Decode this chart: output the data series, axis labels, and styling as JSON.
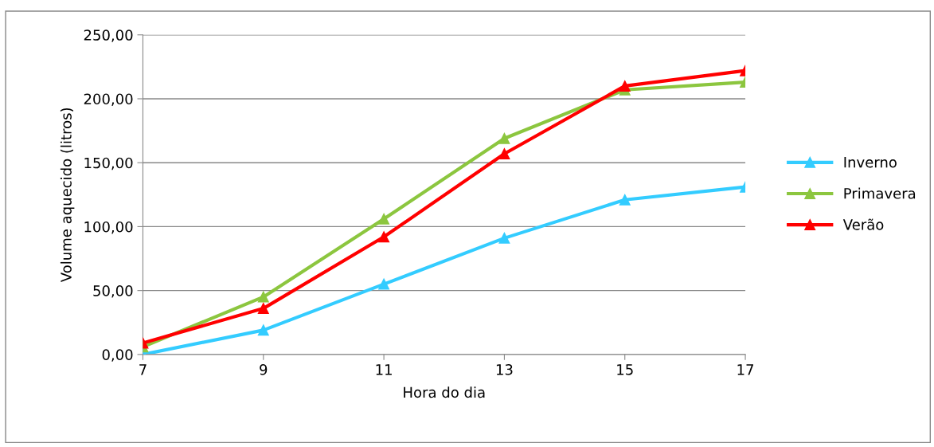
{
  "chart_data": {
    "type": "line",
    "xlabel": "Hora do dia",
    "ylabel": "Volume aquecido (litros)",
    "x": [
      7,
      9,
      11,
      13,
      15,
      17
    ],
    "xlim": [
      7,
      17
    ],
    "xticks": [
      7,
      9,
      11,
      13,
      15,
      17
    ],
    "ylim": [
      0,
      250
    ],
    "yticks": [
      {
        "value": 0,
        "label": "0,00"
      },
      {
        "value": 50,
        "label": "50,00"
      },
      {
        "value": 100,
        "label": "100,00"
      },
      {
        "value": 150,
        "label": "150,00"
      },
      {
        "value": 200,
        "label": "200,00"
      },
      {
        "value": 250,
        "label": "250,00"
      }
    ],
    "series": [
      {
        "name": "Inverno",
        "color": "#33ccff",
        "values": [
          0,
          19,
          55,
          91,
          121,
          131
        ]
      },
      {
        "name": "Primavera",
        "color": "#8cc63f",
        "values": [
          6,
          45,
          106,
          169,
          207,
          213
        ]
      },
      {
        "name": "Verão",
        "color": "#ff0000",
        "values": [
          9,
          36,
          92,
          157,
          210,
          222
        ]
      }
    ],
    "grid": "y",
    "legend": "right",
    "marker": "triangle",
    "line_style": "solid"
  }
}
